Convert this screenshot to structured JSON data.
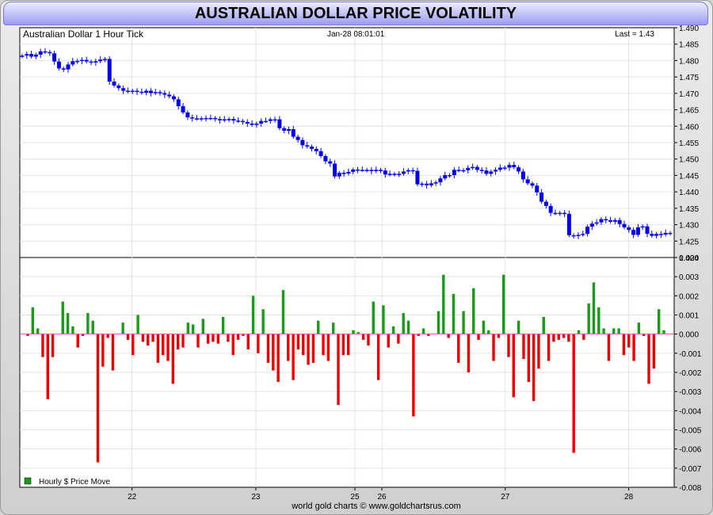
{
  "title": "AUSTRALIAN DOLLAR PRICE VOLATILITY",
  "footer": "world gold charts © www.goldchartsrus.com",
  "chart_data": [
    {
      "type": "candlestick",
      "label": "Australian Dollar 1 Hour Tick",
      "timestamp": "Jan-28  08:01:01",
      "last": "Last = 1.43",
      "ylim": [
        1.42,
        1.49
      ],
      "yticks": [
        "1.490",
        "1.485",
        "1.480",
        "1.475",
        "1.470",
        "1.465",
        "1.460",
        "1.455",
        "1.450",
        "1.445",
        "1.440",
        "1.435",
        "1.430",
        "1.425",
        "1.420"
      ],
      "color": "#0000ee",
      "close": [
        1.4815,
        1.482,
        1.4812,
        1.4818,
        1.4828,
        1.4826,
        1.4822,
        1.4797,
        1.4776,
        1.4773,
        1.4788,
        1.4798,
        1.4799,
        1.4802,
        1.4797,
        1.4794,
        1.4798,
        1.4803,
        1.4805,
        1.4736,
        1.4724,
        1.4716,
        1.4708,
        1.4706,
        1.4708,
        1.4705,
        1.4702,
        1.4708,
        1.4701,
        1.4704,
        1.4701,
        1.4696,
        1.4691,
        1.4682,
        1.4661,
        1.4642,
        1.4627,
        1.4624,
        1.4623,
        1.4624,
        1.4625,
        1.4625,
        1.4622,
        1.4618,
        1.4621,
        1.4622,
        1.4617,
        1.4616,
        1.4613,
        1.4608,
        1.4604,
        1.4608,
        1.4616,
        1.4616,
        1.4621,
        1.4621,
        1.4594,
        1.4586,
        1.4591,
        1.4568,
        1.4558,
        1.4542,
        1.4538,
        1.4531,
        1.4524,
        1.4509,
        1.4493,
        1.4486,
        1.4447,
        1.4458,
        1.4456,
        1.4461,
        1.4468,
        1.4467,
        1.4467,
        1.4467,
        1.4463,
        1.4467,
        1.4465,
        1.4453,
        1.4455,
        1.4455,
        1.4455,
        1.4462,
        1.4466,
        1.4464,
        1.4423,
        1.4425,
        1.442,
        1.4426,
        1.4429,
        1.4441,
        1.4451,
        1.4451,
        1.4467,
        1.4466,
        1.4466,
        1.4473,
        1.4476,
        1.4467,
        1.4465,
        1.4455,
        1.4462,
        1.4467,
        1.4474,
        1.4474,
        1.4482,
        1.4475,
        1.4462,
        1.4438,
        1.4426,
        1.4419,
        1.4398,
        1.437,
        1.4357,
        1.4336,
        1.4335,
        1.4336,
        1.4333,
        1.4268,
        1.4266,
        1.4269,
        1.4272,
        1.4294,
        1.4303,
        1.4307,
        1.4317,
        1.4314,
        1.4309,
        1.4314,
        1.4302,
        1.4292,
        1.4284,
        1.4269,
        1.4292,
        1.4295,
        1.4272,
        1.4266,
        1.4272,
        1.427,
        1.4275,
        1.4275
      ],
      "x_ticks": [
        "22",
        "23",
        "25",
        "26",
        "27",
        "28"
      ]
    },
    {
      "type": "bar",
      "label": "Hourly $ Price Move",
      "ylim": [
        -0.008,
        0.004
      ],
      "yticks": [
        "0.004",
        "0.003",
        "0.002",
        "0.001",
        "0.000",
        "-0.001",
        "-0.002",
        "-0.003",
        "-0.004",
        "-0.005",
        "-0.006",
        "-0.007",
        "-0.008"
      ],
      "up_color": "#1a9a1a",
      "down_color": "#ee0000",
      "values": [
        -0.0001,
        0.0014,
        0.0003,
        -0.0012,
        -0.0034,
        -0.0012,
        0,
        0.0017,
        0.0011,
        0.0004,
        -0.0007,
        -0.0001,
        0.0011,
        0.0007,
        -0.0067,
        -0.0017,
        -0.0002,
        -0.0019,
        0,
        0.0006,
        -0.0003,
        -0.0011,
        0.001,
        -0.0004,
        -0.0006,
        -0.0004,
        -0.0015,
        -0.0011,
        -0.0014,
        -0.0026,
        -0.0008,
        -0.0007,
        0.0006,
        0.0005,
        -0.0007,
        0.0008,
        -0.0005,
        -0.0004,
        -0.0005,
        0.0009,
        -0.0004,
        -0.0011,
        -0.0003,
        -0.0001,
        -0.0008,
        0.002,
        -0.001,
        0.0013,
        -0.0015,
        -0.0019,
        -0.0025,
        0.0023,
        -0.0014,
        -0.0024,
        -0.0008,
        -0.0011,
        -0.0016,
        -0.0015,
        0.0007,
        -0.0011,
        -0.0014,
        0.0006,
        -0.0037,
        -0.0011,
        -0.0011,
        0.0002,
        0.0001,
        -0.0003,
        -0.0006,
        0.0017,
        -0.0024,
        0.0015,
        -0.0007,
        0.0004,
        -0.0005,
        0.0011,
        0.0007,
        -0.0043,
        -0.0001,
        0.0003,
        -0.0001,
        0,
        0.0012,
        0.0031,
        -0.0002,
        0.0021,
        -0.0015,
        0.0012,
        -0.002,
        0.0024,
        -0.0003,
        0.0007,
        0.0002,
        -0.0014,
        -0.0002,
        0.0031,
        -0.0012,
        -0.0033,
        0.0007,
        -0.0013,
        -0.0025,
        -0.0035,
        -0.0018,
        0.0009,
        -0.0014,
        -0.0004,
        -0.0003,
        -0.0002,
        -0.0004,
        -0.0062,
        0.0002,
        -0.0003,
        0.0016,
        0.0027,
        0.0014,
        0.0003,
        -0.0014,
        0.0003,
        0.0003,
        -0.0011,
        -0.0007,
        -0.0014,
        0.0006,
        -0.0001,
        -0.0026,
        -0.0018,
        0.0013,
        0.0002
      ]
    }
  ]
}
